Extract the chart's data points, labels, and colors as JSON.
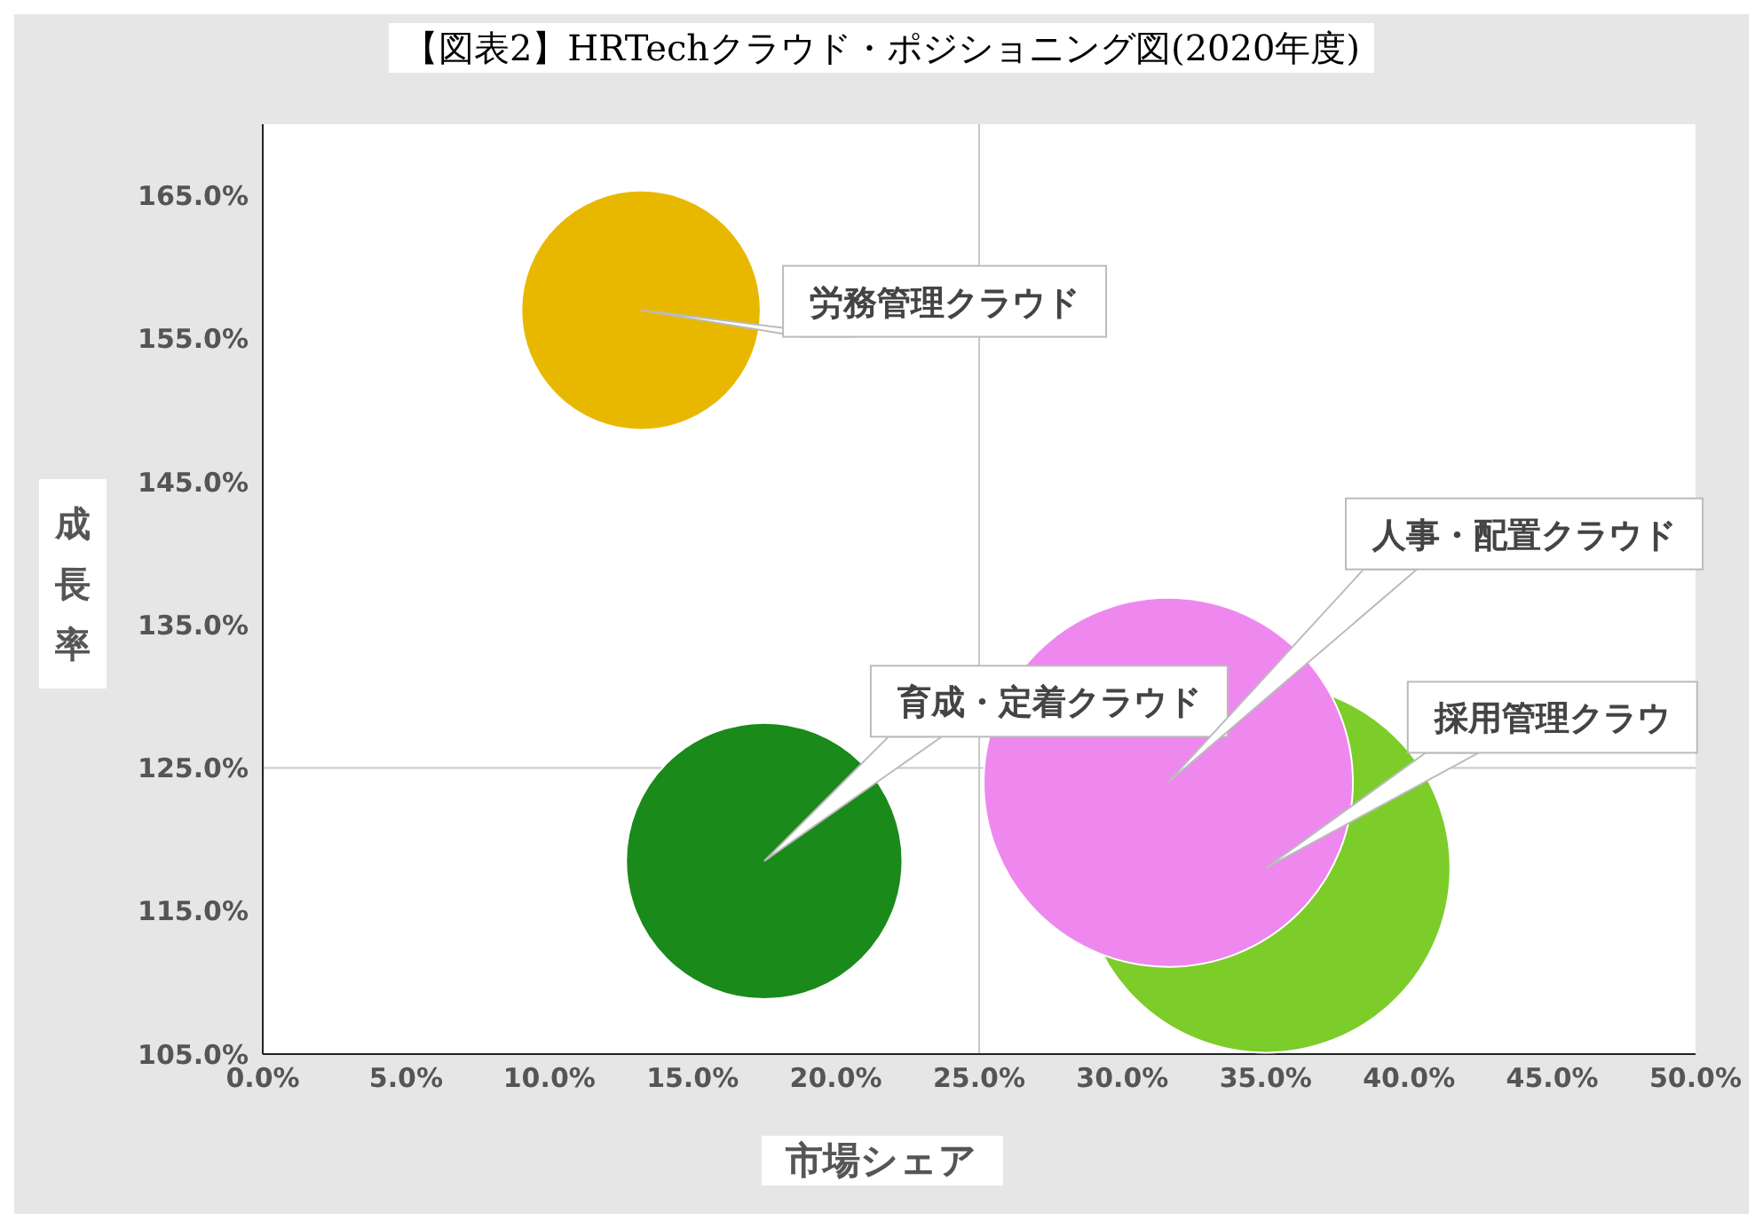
{
  "chart_data": {
    "type": "bubble",
    "title": "【図表2】HRTechクラウド・ポジショニング図(2020年度)",
    "xlabel": "市場シェア",
    "ylabel": "成長率",
    "xlim": [
      0,
      50
    ],
    "ylim": [
      105,
      170
    ],
    "xticks": [
      {
        "value": 0,
        "label": "0.0%"
      },
      {
        "value": 5,
        "label": "5.0%"
      },
      {
        "value": 10,
        "label": "10.0%"
      },
      {
        "value": 15,
        "label": "15.0%"
      },
      {
        "value": 20,
        "label": "20.0%"
      },
      {
        "value": 25,
        "label": "25.0%"
      },
      {
        "value": 30,
        "label": "30.0%"
      },
      {
        "value": 35,
        "label": "35.0%"
      },
      {
        "value": 40,
        "label": "40.0%"
      },
      {
        "value": 45,
        "label": "45.0%"
      },
      {
        "value": 50,
        "label": "50.0%"
      }
    ],
    "yticks": [
      {
        "value": 105,
        "label": "105.0%"
      },
      {
        "value": 115,
        "label": "115.0%"
      },
      {
        "value": 125,
        "label": "125.0%"
      },
      {
        "value": 135,
        "label": "135.0%"
      },
      {
        "value": 145,
        "label": "145.0%"
      },
      {
        "value": 155,
        "label": "155.0%"
      },
      {
        "value": 165,
        "label": "165.0%"
      }
    ],
    "ref_lines": [
      {
        "axis": "x",
        "value": 25,
        "color": "#c8c8c8"
      },
      {
        "axis": "y",
        "value": 125,
        "color": "#c8c8c8"
      }
    ],
    "series": [
      {
        "name": "労務管理クラウド",
        "color": "#e8b800",
        "x": [
          13.2
        ],
        "values": [
          157
        ],
        "sizes": [
          0.42
        ]
      },
      {
        "name": "育成・定着クラウド",
        "color": "#1a8a1a",
        "x": [
          17.5
        ],
        "values": [
          118.5
        ],
        "sizes": [
          0.56
        ]
      },
      {
        "name": "採用管理クラウ",
        "color": "#7ccc2a",
        "x": [
          35
        ],
        "values": [
          118
        ],
        "sizes": [
          1
        ]
      },
      {
        "name": "人事・配置クラウド",
        "color": "#ee88ee",
        "x": [
          31.6
        ],
        "values": [
          124
        ],
        "sizes": [
          1
        ]
      }
    ]
  }
}
